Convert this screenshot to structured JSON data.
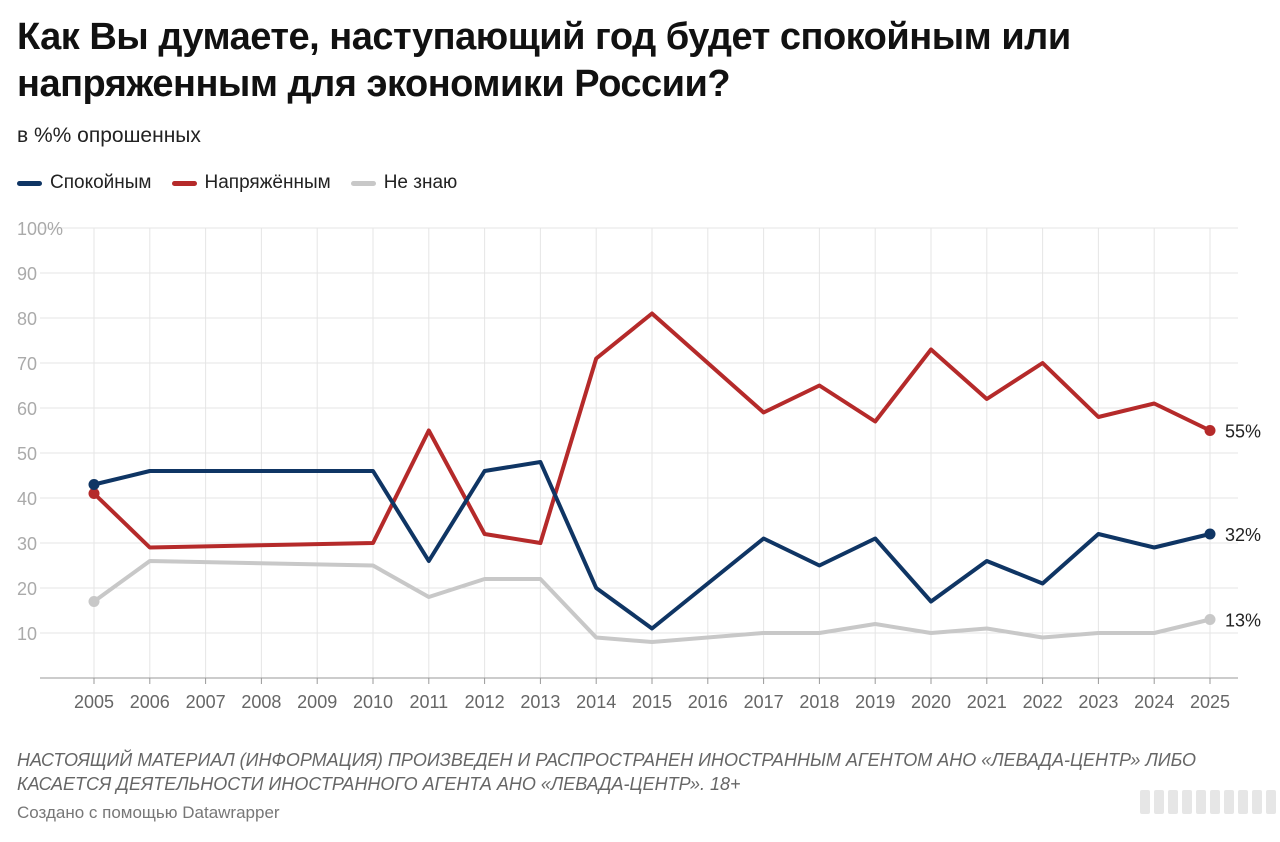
{
  "title": "Как Вы думаете, наступающий год будет спокойным или напряженным для экономики России?",
  "subtitle": "в %% опрошенных",
  "colors": {
    "calm": "#0f3564",
    "tense": "#b52a2a",
    "unknown": "#c8c8c8",
    "grid": "#e5e5e5",
    "axis": "#999999",
    "tick": "#aaaaaa",
    "xtick": "#666666"
  },
  "chart_data": {
    "type": "line",
    "x": [
      "2005",
      "2006",
      "2007",
      "2008",
      "2009",
      "2010",
      "2011",
      "2012",
      "2013",
      "2014",
      "2015",
      "2016",
      "2017",
      "2018",
      "2019",
      "2020",
      "2021",
      "2022",
      "2023",
      "2024",
      "2025"
    ],
    "y_ticks": [
      "100%",
      "90",
      "80",
      "70",
      "60",
      "50",
      "40",
      "30",
      "20",
      "10"
    ],
    "ylim": [
      0,
      100
    ],
    "series": [
      {
        "name": "Спокойным",
        "key": "calm",
        "values": [
          43,
          46,
          null,
          null,
          null,
          46,
          26,
          46,
          48,
          20,
          11,
          null,
          31,
          25,
          31,
          17,
          26,
          21,
          32,
          29,
          32
        ],
        "end_label": "32%"
      },
      {
        "name": "Напряжённым",
        "key": "tense",
        "values": [
          41,
          29,
          null,
          null,
          null,
          30,
          55,
          32,
          30,
          71,
          81,
          null,
          59,
          65,
          57,
          73,
          62,
          70,
          58,
          61,
          55
        ],
        "end_label": "55%"
      },
      {
        "name": "Не знаю",
        "key": "unknown",
        "values": [
          17,
          26,
          null,
          null,
          null,
          25,
          18,
          22,
          22,
          9,
          8,
          null,
          10,
          10,
          12,
          10,
          11,
          9,
          10,
          10,
          13
        ],
        "end_label": "13%"
      }
    ],
    "legend_position": "top-left"
  },
  "legend": [
    {
      "label": "Спокойным",
      "key": "calm"
    },
    {
      "label": "Напряжённым",
      "key": "tense"
    },
    {
      "label": "Не знаю",
      "key": "unknown"
    }
  ],
  "notice": "НАСТОЯЩИЙ МАТЕРИАЛ (ИНФОРМАЦИЯ) ПРОИЗВЕДЕН И РАСПРОСТРАНЕН ИНОСТРАННЫМ АГЕНТОМ АНО «ЛЕВАДА-ЦЕНТР» ЛИБО КАСАЕТСЯ ДЕЯТЕЛЬНОСТИ ИНОСТРАННОГО АГЕНТА АНО «ЛЕВАДА-ЦЕНТР». 18+",
  "credit": "Создано с помощью Datawrapper"
}
